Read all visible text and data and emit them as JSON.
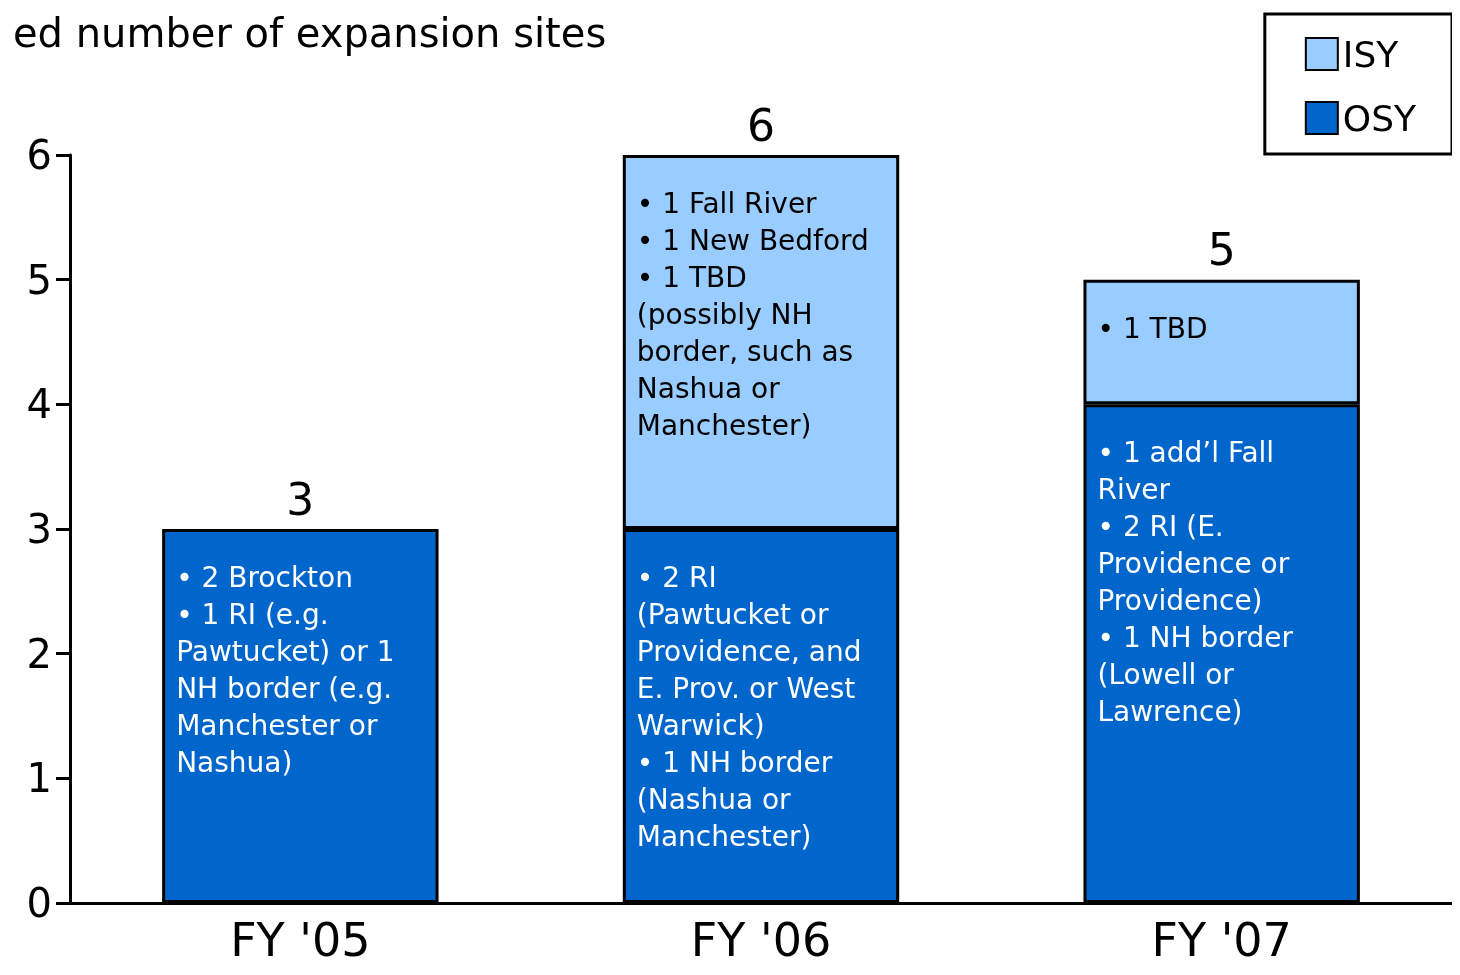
{
  "chart_data": {
    "type": "bar",
    "title": "ed number of expansion sites",
    "stacked": true,
    "categories": [
      "FY '05",
      "FY '06",
      "FY '07"
    ],
    "series": [
      {
        "name": "OSY",
        "color": "#0066cc",
        "values": [
          3,
          3,
          4
        ]
      },
      {
        "name": "ISY",
        "color": "#99ccff",
        "values": [
          0,
          3,
          1
        ]
      }
    ],
    "ylim": [
      0,
      6
    ],
    "yticks": [
      0,
      1,
      2,
      3,
      4,
      5,
      6
    ],
    "grid": false,
    "legend": "top right",
    "totals": [
      "3",
      "6",
      "5"
    ],
    "annotations": [
      {
        "text": "• 2 Brockton\n• 1 RI (e.g. Pawtucket) or 1 NH border (e.g. Manchester or Nashua)",
        "x": "FY '05",
        "y": 3
      },
      {
        "text": "• 1 Fall River\n• 1 New Bedford\n• 1 TBD (possibly NH border, such as Nashua or Manchester)",
        "x": "FY '06",
        "y": 6
      },
      {
        "text": "• 2 RI (Pawtucket or Providence, and E. Prov. or West Warwick)\n• 1 NH border (Nashua or Manchester)",
        "x": "FY '06",
        "y": 3
      },
      {
        "text": "• 1 TBD",
        "x": "FY '07",
        "y": 5
      },
      {
        "text": "• 1 add’l Fall River\n• 2 RI (E. Providence or Providence)\n• 1 NH border (Lowell or Lawrence)",
        "x": "FY '07",
        "y": 4
      }
    ]
  }
}
